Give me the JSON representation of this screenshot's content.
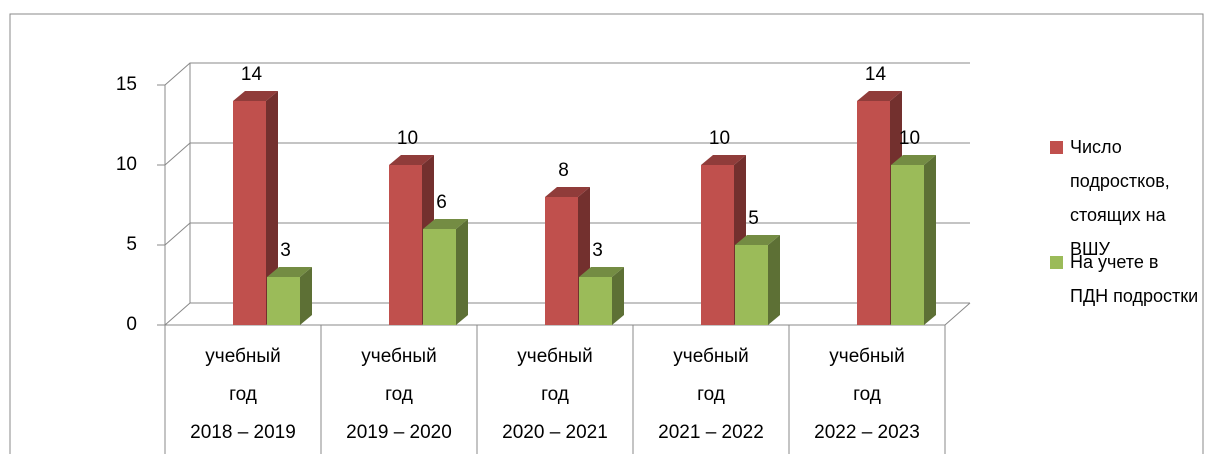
{
  "chart_data": {
    "type": "bar3d",
    "categories": [
      [
        "учебный год",
        "2018 – 2019"
      ],
      [
        "учебный год",
        "2019 – 2020"
      ],
      [
        "учебный год",
        "2020 – 2021"
      ],
      [
        "учебный год",
        "2021 – 2022"
      ],
      [
        "учебный год",
        "2022 – 2023"
      ]
    ],
    "series": [
      {
        "name": "Число подростков, стоящих на ВШУ",
        "color": "#c0504d",
        "values": [
          14,
          10,
          8,
          10,
          14
        ]
      },
      {
        "name": "На учете в ПДН подростки",
        "color": "#9bbb59",
        "values": [
          3,
          6,
          3,
          5,
          10
        ]
      }
    ],
    "ylim": [
      0,
      15
    ],
    "yticks": [
      0,
      5,
      10,
      15
    ],
    "grid": true,
    "legend": "right"
  }
}
